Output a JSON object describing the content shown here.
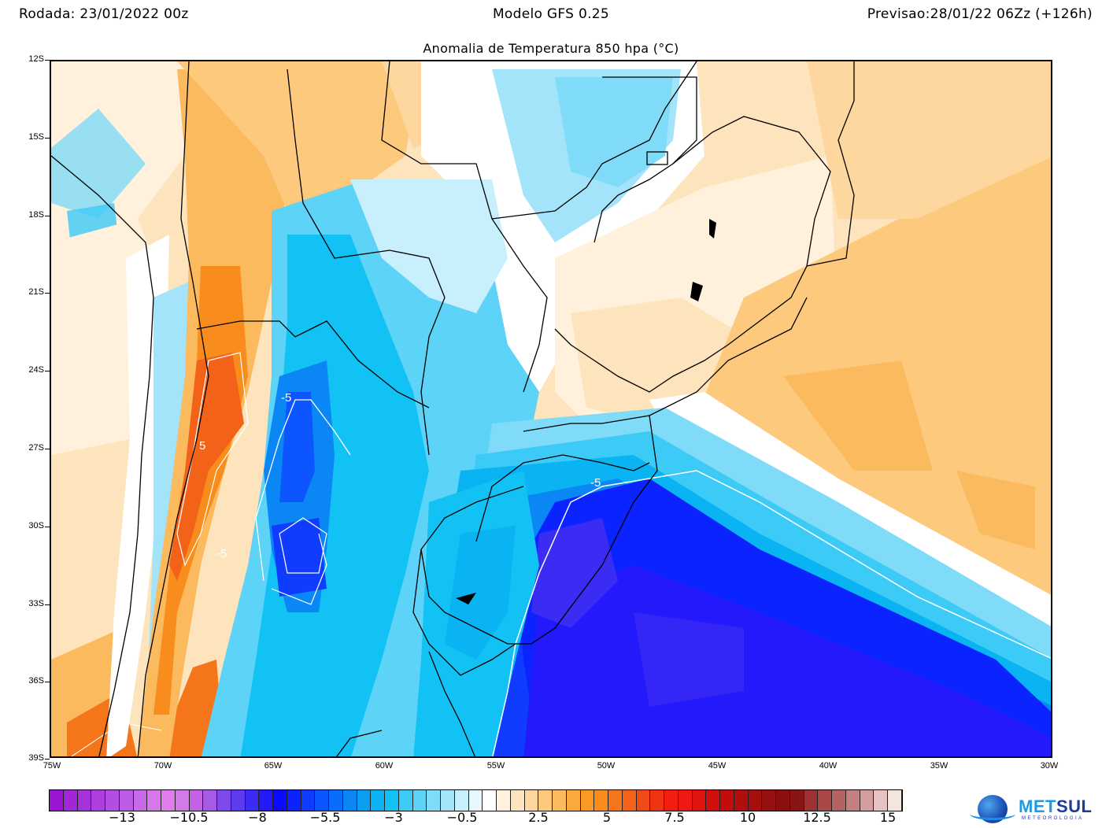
{
  "header": {
    "run": "Rodada: 23/01/2022 00z",
    "model": "Modelo GFS 0.25",
    "forecast": "Previsao:28/01/22 06Zz (+126h)"
  },
  "title": "Anomalia de Temperatura 850 hpa (°C)",
  "axes": {
    "lat_labels": [
      "12S",
      "15S",
      "18S",
      "21S",
      "24S",
      "27S",
      "30S",
      "33S",
      "36S",
      "39S"
    ],
    "lon_labels": [
      "75W",
      "70W",
      "65W",
      "60W",
      "55W",
      "50W",
      "45W",
      "40W",
      "35W",
      "30W"
    ]
  },
  "contour_labels": [
    "-5",
    "-5",
    "-5",
    "5"
  ],
  "colorbar": {
    "labels": [
      "−13",
      "−10.5",
      "−8",
      "−5.5",
      "−3",
      "−0.5",
      "2.5",
      "5",
      "7.5",
      "10",
      "12.5",
      "15"
    ],
    "colors": [
      "#9b14d4",
      "#a226d8",
      "#a632dc",
      "#ad3fdf",
      "#b44ee2",
      "#bc5ce6",
      "#c86ae8",
      "#d677ea",
      "#e17ceb",
      "#d27ae7",
      "#c462e5",
      "#a65ae6",
      "#7e4bea",
      "#5e3bef",
      "#3b2cf4",
      "#2319fa",
      "#0a0aff",
      "#0a23ff",
      "#0f3cff",
      "#0d55ff",
      "#0a6cfa",
      "#0a86f5",
      "#0a9ff2",
      "#0ab4f2",
      "#12c2f5",
      "#3ccbf6",
      "#5dd3f8",
      "#80dbf8",
      "#a3e4fa",
      "#c7effc",
      "#e6f8fe",
      "#ffffff",
      "#fff1dc",
      "#fde4bd",
      "#fdd79d",
      "#fcc97d",
      "#fbba5e",
      "#fbaa3c",
      "#fa9a22",
      "#f88c1c",
      "#f4751a",
      "#f26218",
      "#f04a16",
      "#ee3414",
      "#f41e10",
      "#ef1812",
      "#e0140f",
      "#d00f0d",
      "#c20d0c",
      "#b20e0e",
      "#a5100f",
      "#961010",
      "#8c0f10",
      "#8a1414",
      "#9c3232",
      "#a94848",
      "#b46262",
      "#c48080",
      "#d49e9e",
      "#e6c2c2",
      "#f4e6dc"
    ]
  },
  "logo": {
    "brand_a": "MET",
    "brand_b": "SUL",
    "subtitle": "METEOROLOGIA"
  }
}
